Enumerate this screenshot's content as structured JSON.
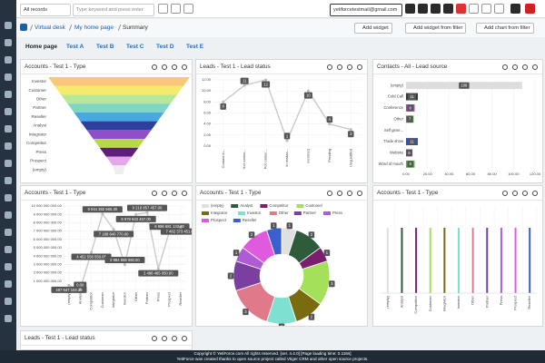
{
  "topbar": {
    "records": "All records",
    "search_placeholder": "Type keyword and press enter",
    "email": "yetiforcetestmail@gmail.com"
  },
  "breadcrumb": [
    "Virtual desk",
    "My home page",
    "Summary"
  ],
  "actions": [
    "Add widget",
    "Add widget from filter",
    "Add chart from filter"
  ],
  "tabs": [
    "Home page",
    "Test A",
    "Test B",
    "Test C",
    "Test D",
    "Test E"
  ],
  "widgets": [
    {
      "title": "Accounts - Test 1 - Type",
      "chart": {
        "type": "funnel",
        "categories": [
          "Investor",
          "Customer",
          "Other",
          "Partner",
          "Reseller",
          "Analyst",
          "Integrator",
          "Competitor",
          "Press",
          "Prospect",
          "(empty)"
        ],
        "values": [
          11,
          10,
          9,
          8,
          7,
          6,
          5,
          4,
          3,
          2,
          1
        ],
        "colors": [
          "#f7c77a",
          "#f5ea6b",
          "#b7e89a",
          "#7fd6c4",
          "#4aa8e0",
          "#2e3f9e",
          "#8e4fc9",
          "#b6d84a",
          "#5c1f7a",
          "#e6a7e8",
          "#eeeeee"
        ]
      }
    },
    {
      "title": "Leads - Test 1 - Lead status",
      "chart": {
        "type": "line",
        "categories": [
          "Contact in...",
          "Not contac...",
          "Pot contac...",
          "In realiza...",
          "Incorrect",
          "Pending",
          "Unqualified"
        ],
        "values": [
          8,
          11,
          12,
          1,
          10,
          4,
          3
        ],
        "color": "#cccccc",
        "ylim": [
          0,
          12
        ],
        "yticks": [
          {
            "value": 0,
            "label": "0.00"
          },
          {
            "value": 2,
            "label": "2.00"
          },
          {
            "value": 4,
            "label": "4.00"
          },
          {
            "value": 6,
            "label": "6.00"
          },
          {
            "value": 8,
            "label": "8.00"
          },
          {
            "value": 10,
            "label": "10.00"
          },
          {
            "value": 12,
            "label": "12.00"
          }
        ]
      }
    },
    {
      "title": "Contacts - All - Lead source",
      "chart": {
        "type": "hbar",
        "categories": [
          "(empty)",
          "Cold Call",
          "Conference",
          "Other",
          "Self gene...",
          "Trade show",
          "Website",
          "Word of mouth"
        ],
        "values": [
          108,
          11,
          8,
          7,
          null,
          11,
          6,
          8
        ],
        "colors": [
          "#dddddd",
          "#2f3b3b",
          "#c532c0",
          "#3c9a3c",
          "#999999",
          "#2e4fc9",
          "#8e3fc9",
          "#52b83a"
        ],
        "xlim": [
          0,
          120
        ],
        "xticks": [
          {
            "value": 0,
            "label": "0.00"
          },
          {
            "value": 20,
            "label": "20.00"
          },
          {
            "value": 40,
            "label": "40.00"
          },
          {
            "value": 60,
            "label": "60.00"
          },
          {
            "value": 80,
            "label": "80.00"
          },
          {
            "value": 100,
            "label": "100.00"
          },
          {
            "value": 120,
            "label": "120.00"
          }
        ]
      }
    },
    {
      "title": "Accounts - Test 1 - Type",
      "chart": {
        "type": "line",
        "categories": [
          "(empty)",
          "Analyst",
          "Competitor",
          "Customer",
          "Integrator",
          "Investor",
          "Other",
          "Partner",
          "Press",
          "Prospect",
          "Reseller"
        ],
        "values": [
          497647104.2,
          0,
          4452558558.05,
          9044382565.3,
          7188640770,
          2984659060,
          8978643457,
          9218857457,
          2486465050,
          6986681133.2,
          7482373451.01
        ],
        "value_labels": [
          "497 647 104.20",
          "0.00",
          "4 452 558 558.05",
          "9 044 382 565.30",
          "7 188 640 770.00",
          "2 984 659 060.00",
          "8 978 643 457.00",
          "9 218 857 457.00",
          "2 486 465 050.00",
          "6 986 681 133.20",
          "7 482 373 451.01"
        ],
        "color": "#cccccc",
        "ylim": [
          0,
          10000000000
        ],
        "yticks": [
          {
            "value": 0,
            "label": "0.00"
          },
          {
            "value": 1000000000,
            "label": "1 000 000 000.00"
          },
          {
            "value": 2000000000,
            "label": "2 000 000 000.00"
          },
          {
            "value": 3000000000,
            "label": "3 000 000 000.00"
          },
          {
            "value": 4000000000,
            "label": "4 000 000 000.00"
          },
          {
            "value": 5000000000,
            "label": "5 000 000 000.00"
          },
          {
            "value": 6000000000,
            "label": "6 000 000 000.00"
          },
          {
            "value": 7000000000,
            "label": "7 000 000 000.00"
          },
          {
            "value": 8000000000,
            "label": "8 000 000 000.00"
          },
          {
            "value": 9000000000,
            "label": "9 000 000 000.00"
          },
          {
            "value": 10000000000,
            "label": "10 000 000 000.00"
          }
        ]
      }
    },
    {
      "title": "Accounts - Test 1 - Type",
      "chart": {
        "type": "doughnut",
        "categories": [
          "(empty)",
          "Analyst",
          "Competitor",
          "Customer",
          "Integrator",
          "Investor",
          "Other",
          "Partner",
          "Press",
          "Prospect",
          "Reseller"
        ],
        "values": [
          1,
          2,
          1,
          3,
          2,
          2,
          3,
          2,
          1,
          2,
          1
        ],
        "colors": [
          "#e0e0e0",
          "#2e5b3a",
          "#7a1f6e",
          "#a5e05a",
          "#7a6a10",
          "#7ee0d0",
          "#e07a8a",
          "#7b3fa0",
          "#b05bd6",
          "#e05ae0",
          "#3c5fd0"
        ]
      }
    },
    {
      "title": "Accounts - Test 1 - Type",
      "chart": {
        "type": "bar",
        "categories": [
          "(empty)",
          "Analyst",
          "Competitor",
          "Customer",
          "Integrator",
          "Investor",
          "Other",
          "Partner",
          "Press",
          "Prospect",
          "Reseller"
        ],
        "values": [
          3,
          3,
          3,
          3,
          3,
          3,
          3,
          3,
          3,
          3,
          3
        ],
        "colors": [
          "#e0e0e0",
          "#2e5b3a",
          "#7a1f6e",
          "#a5e05a",
          "#7a6a10",
          "#7ee0d0",
          "#e07a8a",
          "#7b3fa0",
          "#b05bd6",
          "#e05ae0",
          "#3c5fd0"
        ],
        "ylim": [
          0,
          3
        ]
      }
    },
    {
      "title": "Leads - Test 1 - Lead status"
    }
  ],
  "footer": {
    "copyright": "Copyright © YetiForce.com All rights reserved. [ver. 4.4.0] [Page loading time: 0.116s]",
    "credits": "YetiForce was created thanks to open source project called Vtiger CRM and other open source projects."
  }
}
